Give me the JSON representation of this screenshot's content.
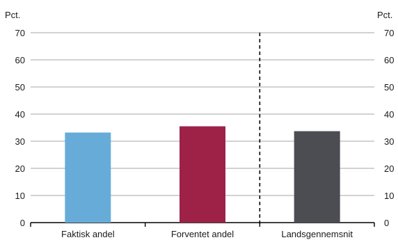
{
  "chart_data": {
    "type": "bar",
    "left_unit": "Pct.",
    "right_unit": "Pct.",
    "ylim": [
      0,
      70
    ],
    "y_ticks": [
      "0",
      "10",
      "20",
      "30",
      "40",
      "50",
      "60",
      "70"
    ],
    "grid": true,
    "categories": [
      "Faktisk andel",
      "Forventet andel",
      "Landsgennemsnit"
    ],
    "values": [
      33.2,
      35.5,
      33.7
    ],
    "colors": [
      "#67acd9",
      "#9e2148",
      "#4b4d52"
    ],
    "separator_after_index": 1
  }
}
